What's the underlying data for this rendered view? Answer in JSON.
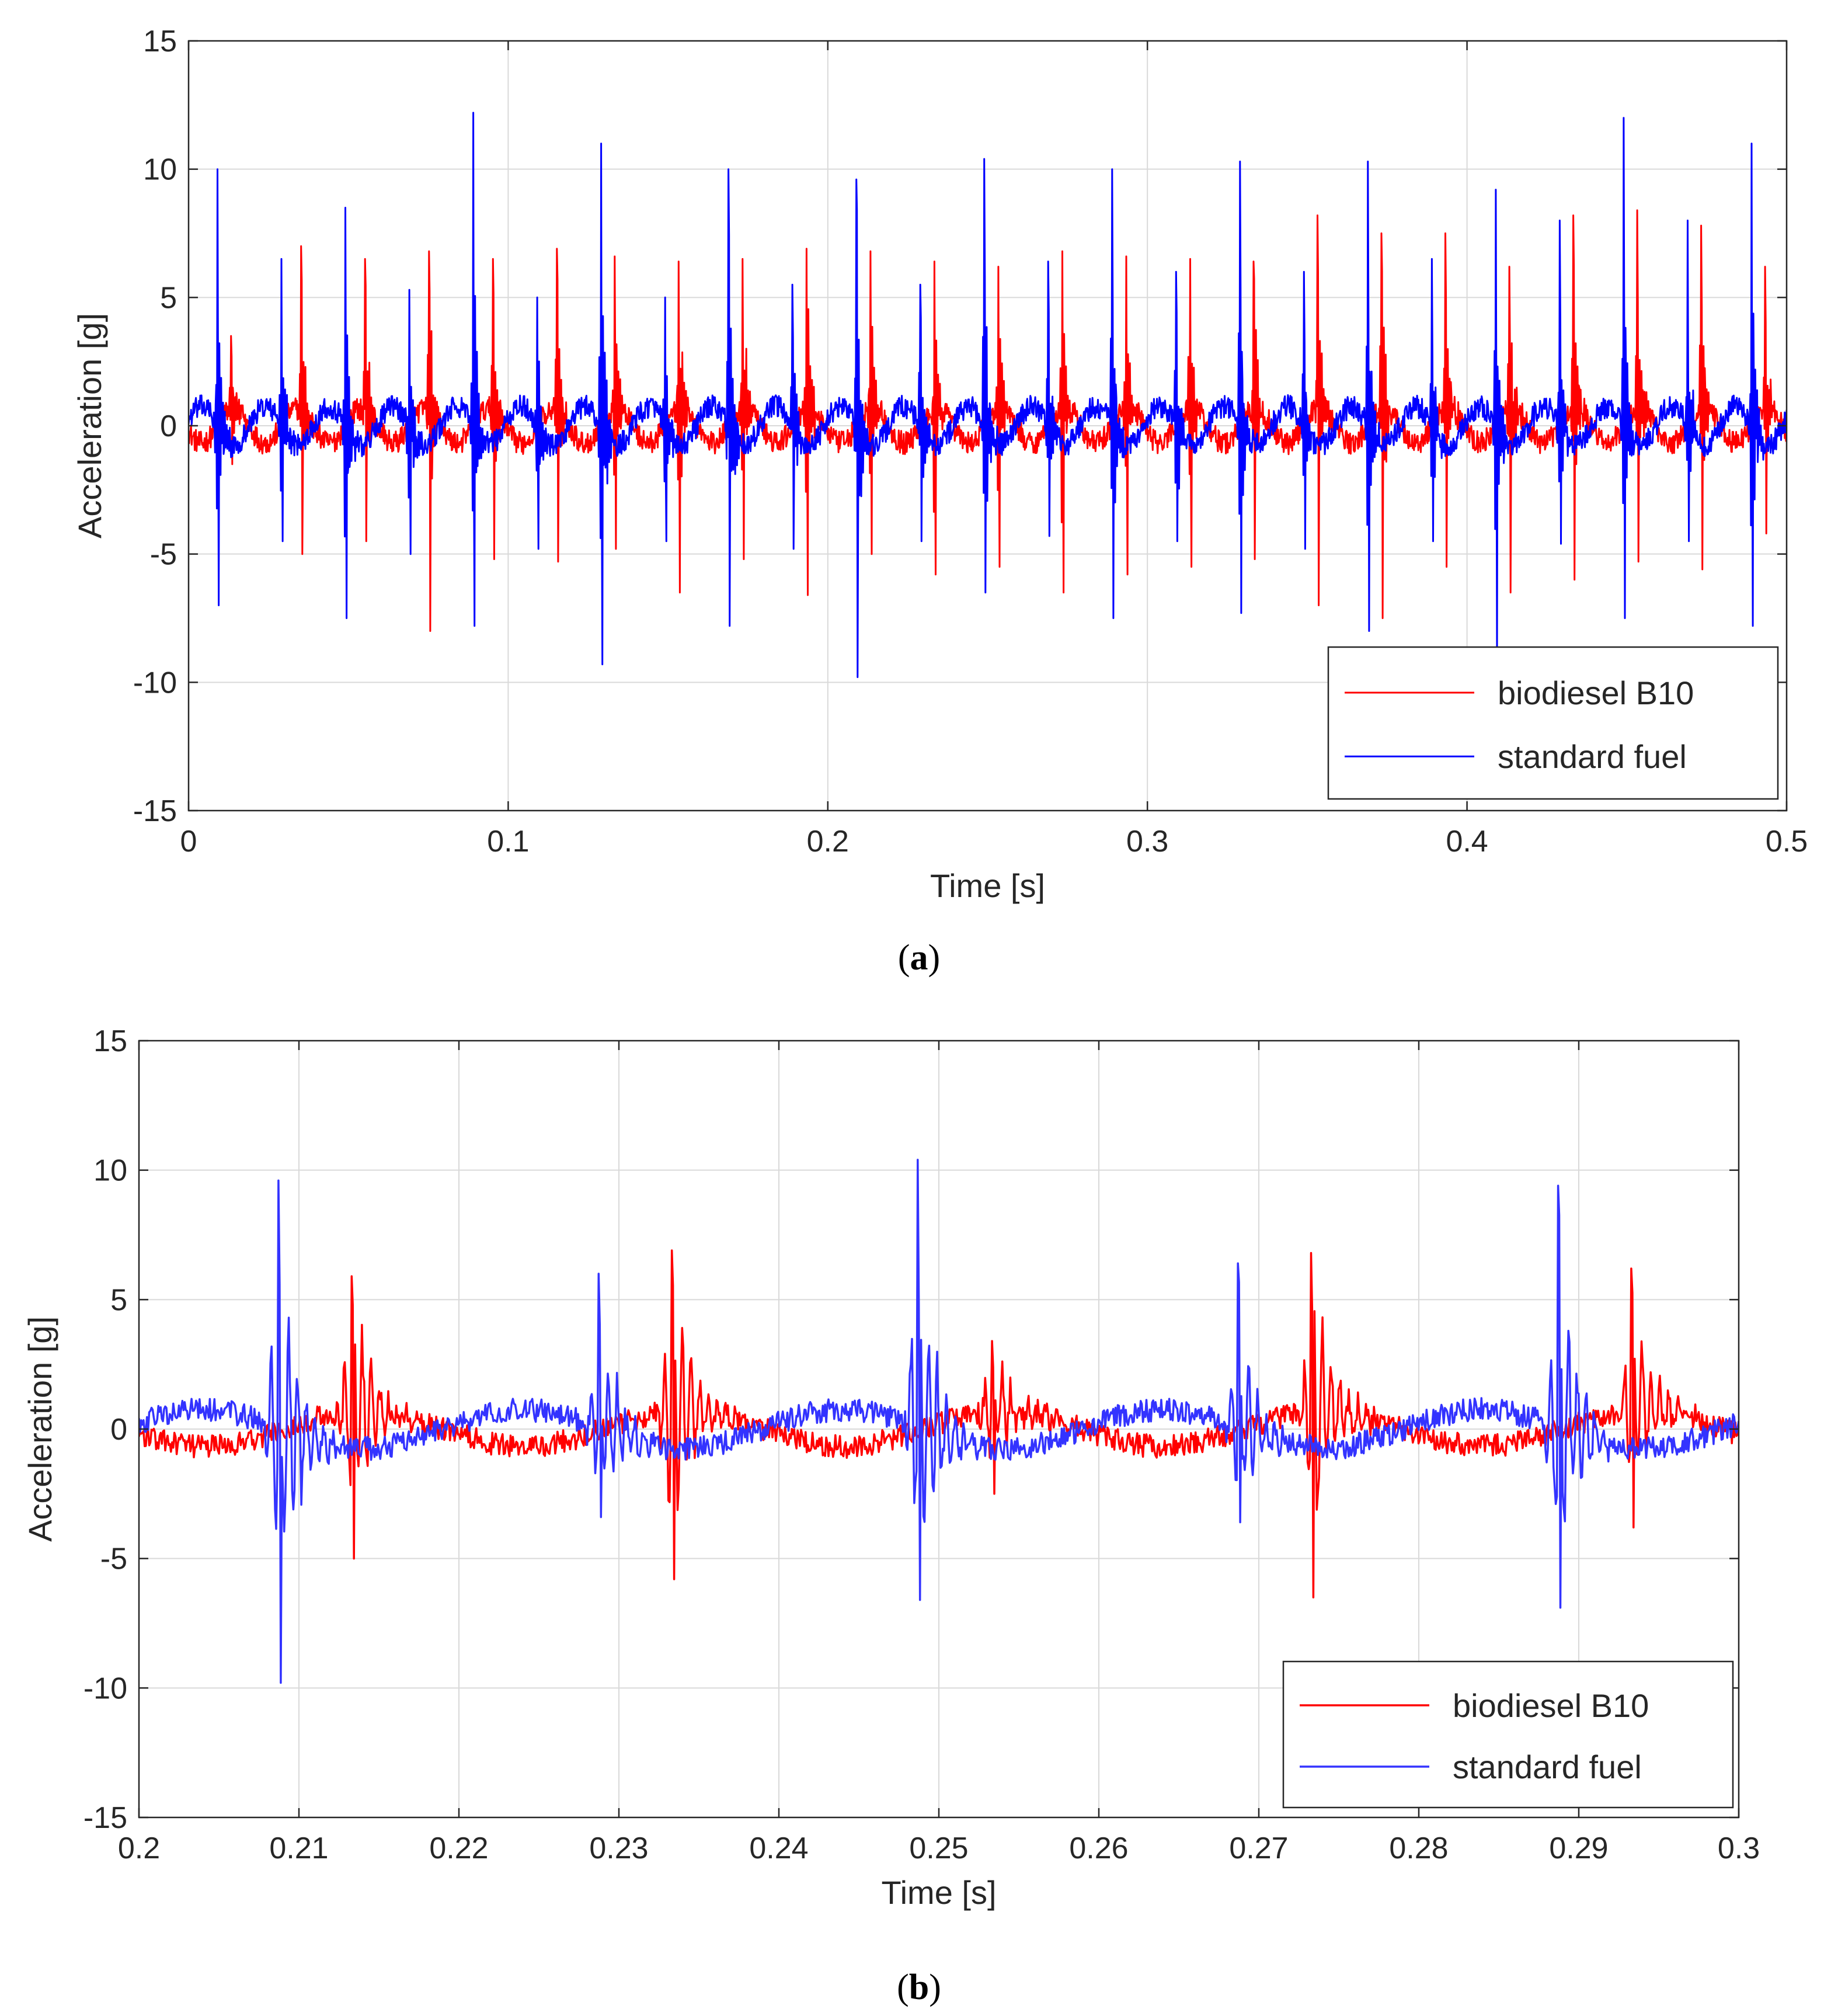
{
  "figure": {
    "panels": [
      {
        "id": "a",
        "caption_open": "(",
        "caption_letter": "a",
        "caption_close": ")"
      },
      {
        "id": "b",
        "caption_open": "(",
        "caption_letter": "b",
        "caption_close": ")"
      }
    ]
  },
  "chart_data": [
    {
      "type": "line",
      "id": "a",
      "title": "",
      "xlabel": "Time [s]",
      "ylabel": "Acceleration [g]",
      "xlim": [
        0,
        0.5
      ],
      "ylim": [
        -15,
        15
      ],
      "xticks": [
        0,
        0.1,
        0.2,
        0.3,
        0.4,
        0.5
      ],
      "xtick_labels": [
        "0",
        "0.1",
        "0.2",
        "0.3",
        "0.4",
        "0.5"
      ],
      "yticks": [
        15,
        10,
        5,
        0,
        -5,
        -10,
        -15
      ],
      "ytick_labels": [
        "15",
        "10",
        "5",
        "0",
        "-5",
        "-10",
        "-15"
      ],
      "grid": true,
      "legend_position": "bottom-right",
      "series": [
        {
          "name": "biodiesel B10",
          "color": "#ff0000",
          "pulse_times": [
            0.0133,
            0.0353,
            0.0553,
            0.0753,
            0.0953,
            0.1153,
            0.1333,
            0.1533,
            0.1733,
            0.1933,
            0.2133,
            0.2333,
            0.2533,
            0.2733,
            0.2933,
            0.3133,
            0.3333,
            0.3533,
            0.3733,
            0.3933,
            0.4133,
            0.4333,
            0.4533,
            0.4733,
            0.4933
          ],
          "pulse_peaks": [
            3.5,
            7.0,
            6.5,
            6.8,
            6.5,
            6.9,
            6.6,
            6.4,
            6.5,
            6.9,
            6.8,
            6.4,
            6.2,
            6.8,
            6.6,
            6.5,
            6.4,
            8.2,
            7.5,
            7.5,
            6.2,
            8.2,
            8.4,
            7.8,
            6.2
          ],
          "pulse_troughs": [
            -1.5,
            -5.0,
            -4.5,
            -8.0,
            -5.2,
            -5.3,
            -4.8,
            -6.5,
            -5.2,
            -6.6,
            -5.0,
            -5.8,
            -5.5,
            -6.5,
            -5.8,
            -5.5,
            -5.2,
            -7.0,
            -7.5,
            -5.5,
            -6.5,
            -6.0,
            -5.3,
            -5.6,
            -4.2
          ]
        },
        {
          "name": "standard fuel",
          "color": "#0000ff",
          "pulse_times": [
            0.009,
            0.029,
            0.049,
            0.069,
            0.089,
            0.109,
            0.129,
            0.149,
            0.169,
            0.189,
            0.209,
            0.229,
            0.249,
            0.269,
            0.289,
            0.309,
            0.329,
            0.349,
            0.369,
            0.389,
            0.409,
            0.429,
            0.449,
            0.469,
            0.489
          ],
          "pulse_peaks": [
            10.0,
            6.5,
            8.5,
            5.3,
            12.2,
            5.0,
            11.0,
            5.0,
            10.0,
            5.5,
            9.6,
            5.5,
            10.4,
            6.4,
            10.0,
            6.0,
            10.3,
            6.0,
            10.3,
            6.5,
            9.2,
            8.0,
            12.0,
            8.0,
            11.0
          ],
          "pulse_troughs": [
            -7.0,
            -4.5,
            -7.5,
            -5.0,
            -7.8,
            -4.8,
            -9.3,
            -4.5,
            -7.8,
            -4.8,
            -9.8,
            -4.5,
            -6.5,
            -4.3,
            -7.5,
            -4.5,
            -7.3,
            -4.8,
            -8.0,
            -4.5,
            -9.0,
            -4.6,
            -7.5,
            -4.5,
            -7.8
          ]
        }
      ]
    },
    {
      "type": "line",
      "id": "b",
      "title": "",
      "xlabel": "Time [s]",
      "ylabel": "Acceleration [g]",
      "xlim": [
        0.2,
        0.3
      ],
      "ylim": [
        -15,
        15
      ],
      "xticks": [
        0.2,
        0.21,
        0.22,
        0.23,
        0.24,
        0.25,
        0.26,
        0.27,
        0.28,
        0.29,
        0.3
      ],
      "xtick_labels": [
        "0.2",
        "0.21",
        "0.22",
        "0.23",
        "0.24",
        "0.25",
        "0.26",
        "0.27",
        "0.28",
        "0.29",
        "0.3"
      ],
      "yticks": [
        15,
        10,
        5,
        0,
        -5,
        -10,
        -15
      ],
      "ytick_labels": [
        "15",
        "10",
        "5",
        "0",
        "-5",
        "-10",
        "-15"
      ],
      "grid": true,
      "legend_position": "bottom-right",
      "series": [
        {
          "name": "biodiesel B10",
          "color": "#ff0000",
          "pulse_times": [
            0.2133,
            0.2333,
            0.2533,
            0.2733,
            0.2933
          ],
          "pulse_peaks": [
            5.9,
            6.9,
            3.4,
            6.8,
            6.2
          ],
          "pulse_troughs": [
            -5.0,
            -5.8,
            -2.5,
            -6.5,
            -3.8
          ]
        },
        {
          "name": "standard fuel",
          "color": "#3333ff",
          "pulse_times": [
            0.2087,
            0.2287,
            0.2487,
            0.2687,
            0.2887
          ],
          "pulse_peaks": [
            9.6,
            6.0,
            10.4,
            6.4,
            9.4
          ],
          "pulse_troughs": [
            -9.8,
            -3.4,
            -6.6,
            -3.6,
            -6.9
          ]
        }
      ]
    }
  ]
}
